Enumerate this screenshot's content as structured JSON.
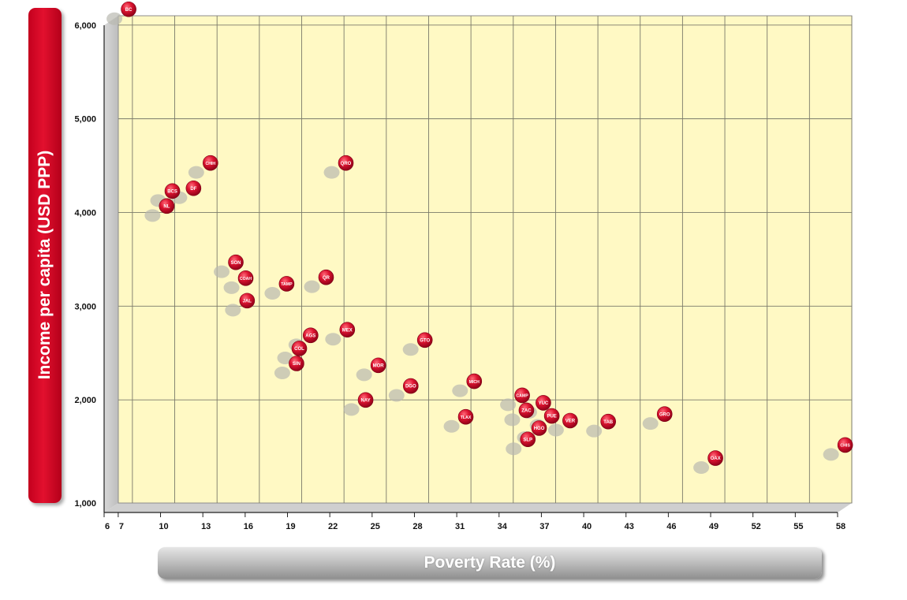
{
  "chart_data": {
    "type": "scatter",
    "title": "",
    "xlabel": "Poverty Rate (%)",
    "ylabel": "Income per capita (USD PPP)",
    "xlim": [
      6,
      58
    ],
    "ylim": [
      1000,
      6200
    ],
    "x_ticks": [
      "6",
      "7",
      "10",
      "13",
      "16",
      "19",
      "22",
      "25",
      "28",
      "31",
      "34",
      "37",
      "40",
      "43",
      "46",
      "49",
      "52",
      "55",
      "58"
    ],
    "y_ticks": [
      "1,000",
      "2,000",
      "3,000",
      "4,000",
      "5,000",
      "6,000"
    ],
    "grid": true,
    "marker_color": "#d4112b",
    "plot_background": "#fff9c4",
    "points": [
      {
        "label": "BC",
        "x": 6.9,
        "y": 6160
      },
      {
        "label": "NL",
        "x": 9.6,
        "y": 4060
      },
      {
        "label": "BCS",
        "x": 10.0,
        "y": 4220
      },
      {
        "label": "DF",
        "x": 11.5,
        "y": 4250
      },
      {
        "label": "CHIH",
        "x": 12.7,
        "y": 4520
      },
      {
        "label": "QRO",
        "x": 22.3,
        "y": 4520
      },
      {
        "label": "SON",
        "x": 14.5,
        "y": 3460
      },
      {
        "label": "COAH",
        "x": 15.2,
        "y": 3290
      },
      {
        "label": "JAL",
        "x": 15.3,
        "y": 3050
      },
      {
        "label": "TAMP",
        "x": 18.1,
        "y": 3230
      },
      {
        "label": "QR",
        "x": 20.9,
        "y": 3300
      },
      {
        "label": "MEX",
        "x": 22.4,
        "y": 2740
      },
      {
        "label": "AGS",
        "x": 19.8,
        "y": 2680
      },
      {
        "label": "COL",
        "x": 19.0,
        "y": 2540
      },
      {
        "label": "SIN",
        "x": 18.8,
        "y": 2380
      },
      {
        "label": "MOR",
        "x": 24.6,
        "y": 2360
      },
      {
        "label": "GTO",
        "x": 27.9,
        "y": 2630
      },
      {
        "label": "DGO",
        "x": 26.9,
        "y": 2140
      },
      {
        "label": "NAY",
        "x": 23.7,
        "y": 1990
      },
      {
        "label": "MICH",
        "x": 31.4,
        "y": 2190
      },
      {
        "label": "TLAX",
        "x": 30.8,
        "y": 1810
      },
      {
        "label": "CAMP",
        "x": 34.8,
        "y": 2040
      },
      {
        "label": "YUC",
        "x": 36.3,
        "y": 1960
      },
      {
        "label": "ZAC",
        "x": 35.1,
        "y": 1880
      },
      {
        "label": "PUE",
        "x": 36.9,
        "y": 1820
      },
      {
        "label": "VER",
        "x": 38.2,
        "y": 1770
      },
      {
        "label": "HGO",
        "x": 36.0,
        "y": 1690
      },
      {
        "label": "SLP",
        "x": 35.2,
        "y": 1570
      },
      {
        "label": "TAB",
        "x": 40.9,
        "y": 1760
      },
      {
        "label": "GRO",
        "x": 44.9,
        "y": 1840
      },
      {
        "label": "OAX",
        "x": 48.5,
        "y": 1370
      },
      {
        "label": "CHIS",
        "x": 57.7,
        "y": 1510
      }
    ]
  }
}
